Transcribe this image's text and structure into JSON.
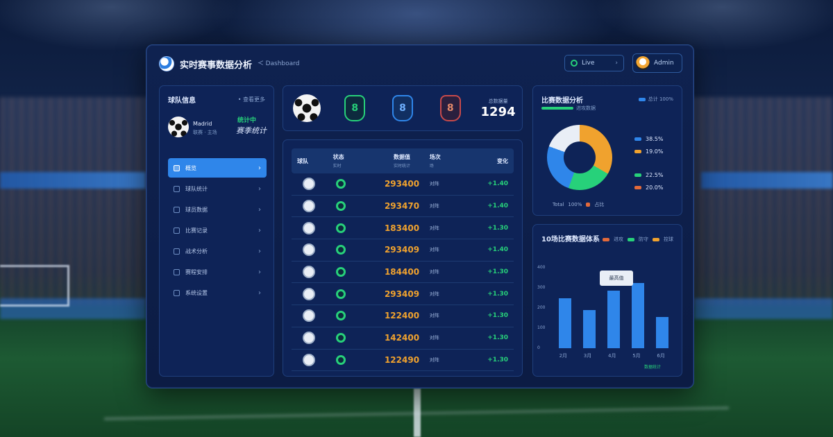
{
  "header": {
    "title": "实时赛事数据分析",
    "subtitle": "ᑄ Dashboard",
    "live_label": "Live",
    "live_arrow": "›",
    "user_label": "Admin"
  },
  "sidebar": {
    "title": "球队信息",
    "more": "• 查看更多",
    "team": {
      "name": "Madrid",
      "sub": "联赛 · 主场",
      "score_top": "统计中",
      "score_main": "赛季统计"
    },
    "items": [
      {
        "label": "概览"
      },
      {
        "label": "球队统计"
      },
      {
        "label": "球员数据"
      },
      {
        "label": "比赛记录"
      },
      {
        "label": "战术分析"
      },
      {
        "label": "赛程安排"
      },
      {
        "label": "系统设置"
      }
    ]
  },
  "kpi": {
    "ball_label": "比赛",
    "badge_green": "8",
    "badge_blue": "8",
    "badge_red": "8",
    "total_label": "总数据量",
    "total_value": "1294"
  },
  "table": {
    "headers": [
      {
        "label": "球队",
        "sub": ""
      },
      {
        "label": "状态",
        "sub": "实时"
      },
      {
        "label": "数据值",
        "sub": "实时统计"
      },
      {
        "label": "场次",
        "sub": "场"
      },
      {
        "label": "变化",
        "sub": ""
      }
    ],
    "rows": [
      {
        "value": "293400",
        "meta": "对阵",
        "delta": "+1.40"
      },
      {
        "value": "293470",
        "meta": "对阵",
        "delta": "+1.40"
      },
      {
        "value": "183400",
        "meta": "对阵",
        "delta": "+1.30"
      },
      {
        "value": "293409",
        "meta": "对阵",
        "delta": "+1.40"
      },
      {
        "value": "184400",
        "meta": "对阵",
        "delta": "+1.30"
      },
      {
        "value": "293409",
        "meta": "对阵",
        "delta": "+1.30"
      },
      {
        "value": "122400",
        "meta": "对阵",
        "delta": "+1.30"
      },
      {
        "value": "142400",
        "meta": "对阵",
        "delta": "+1.30"
      },
      {
        "value": "122490",
        "meta": "对阵",
        "delta": "+1.30"
      }
    ]
  },
  "donut": {
    "title": "比赛数据分析",
    "sub": "进攻数据",
    "legend_top": "总计 100%",
    "legend": [
      {
        "label": "38.5%",
        "color": "#2f86ea"
      },
      {
        "label": "19.0%",
        "color": "#f0a22e"
      },
      {
        "label": "22.5%",
        "color": "#27d17a"
      },
      {
        "label": "20.0%",
        "color": "#e36a3a"
      }
    ],
    "foot_a": "Total",
    "foot_b": "100%",
    "foot_c": "占比",
    "colors": [
      "#f0a22e",
      "#27d17a",
      "#2f86ea",
      "#e9eef6"
    ]
  },
  "bars": {
    "title": "10场比赛数据体系",
    "legend": [
      {
        "label": "进攻",
        "color": "#e36a3a"
      },
      {
        "label": "防守",
        "color": "#27d17a"
      },
      {
        "label": "控球",
        "color": "#f0a22e"
      }
    ],
    "tooltip": "最高值",
    "foot": "数据统计",
    "chart_data": {
      "type": "bar",
      "categories": [
        "2月",
        "3月",
        "4月",
        "5月",
        "6月"
      ],
      "values": [
        250,
        190,
        285,
        325,
        155
      ],
      "ylim": [
        0,
        400
      ],
      "yticks": [
        "400",
        "300",
        "200",
        "100",
        "0"
      ]
    }
  }
}
